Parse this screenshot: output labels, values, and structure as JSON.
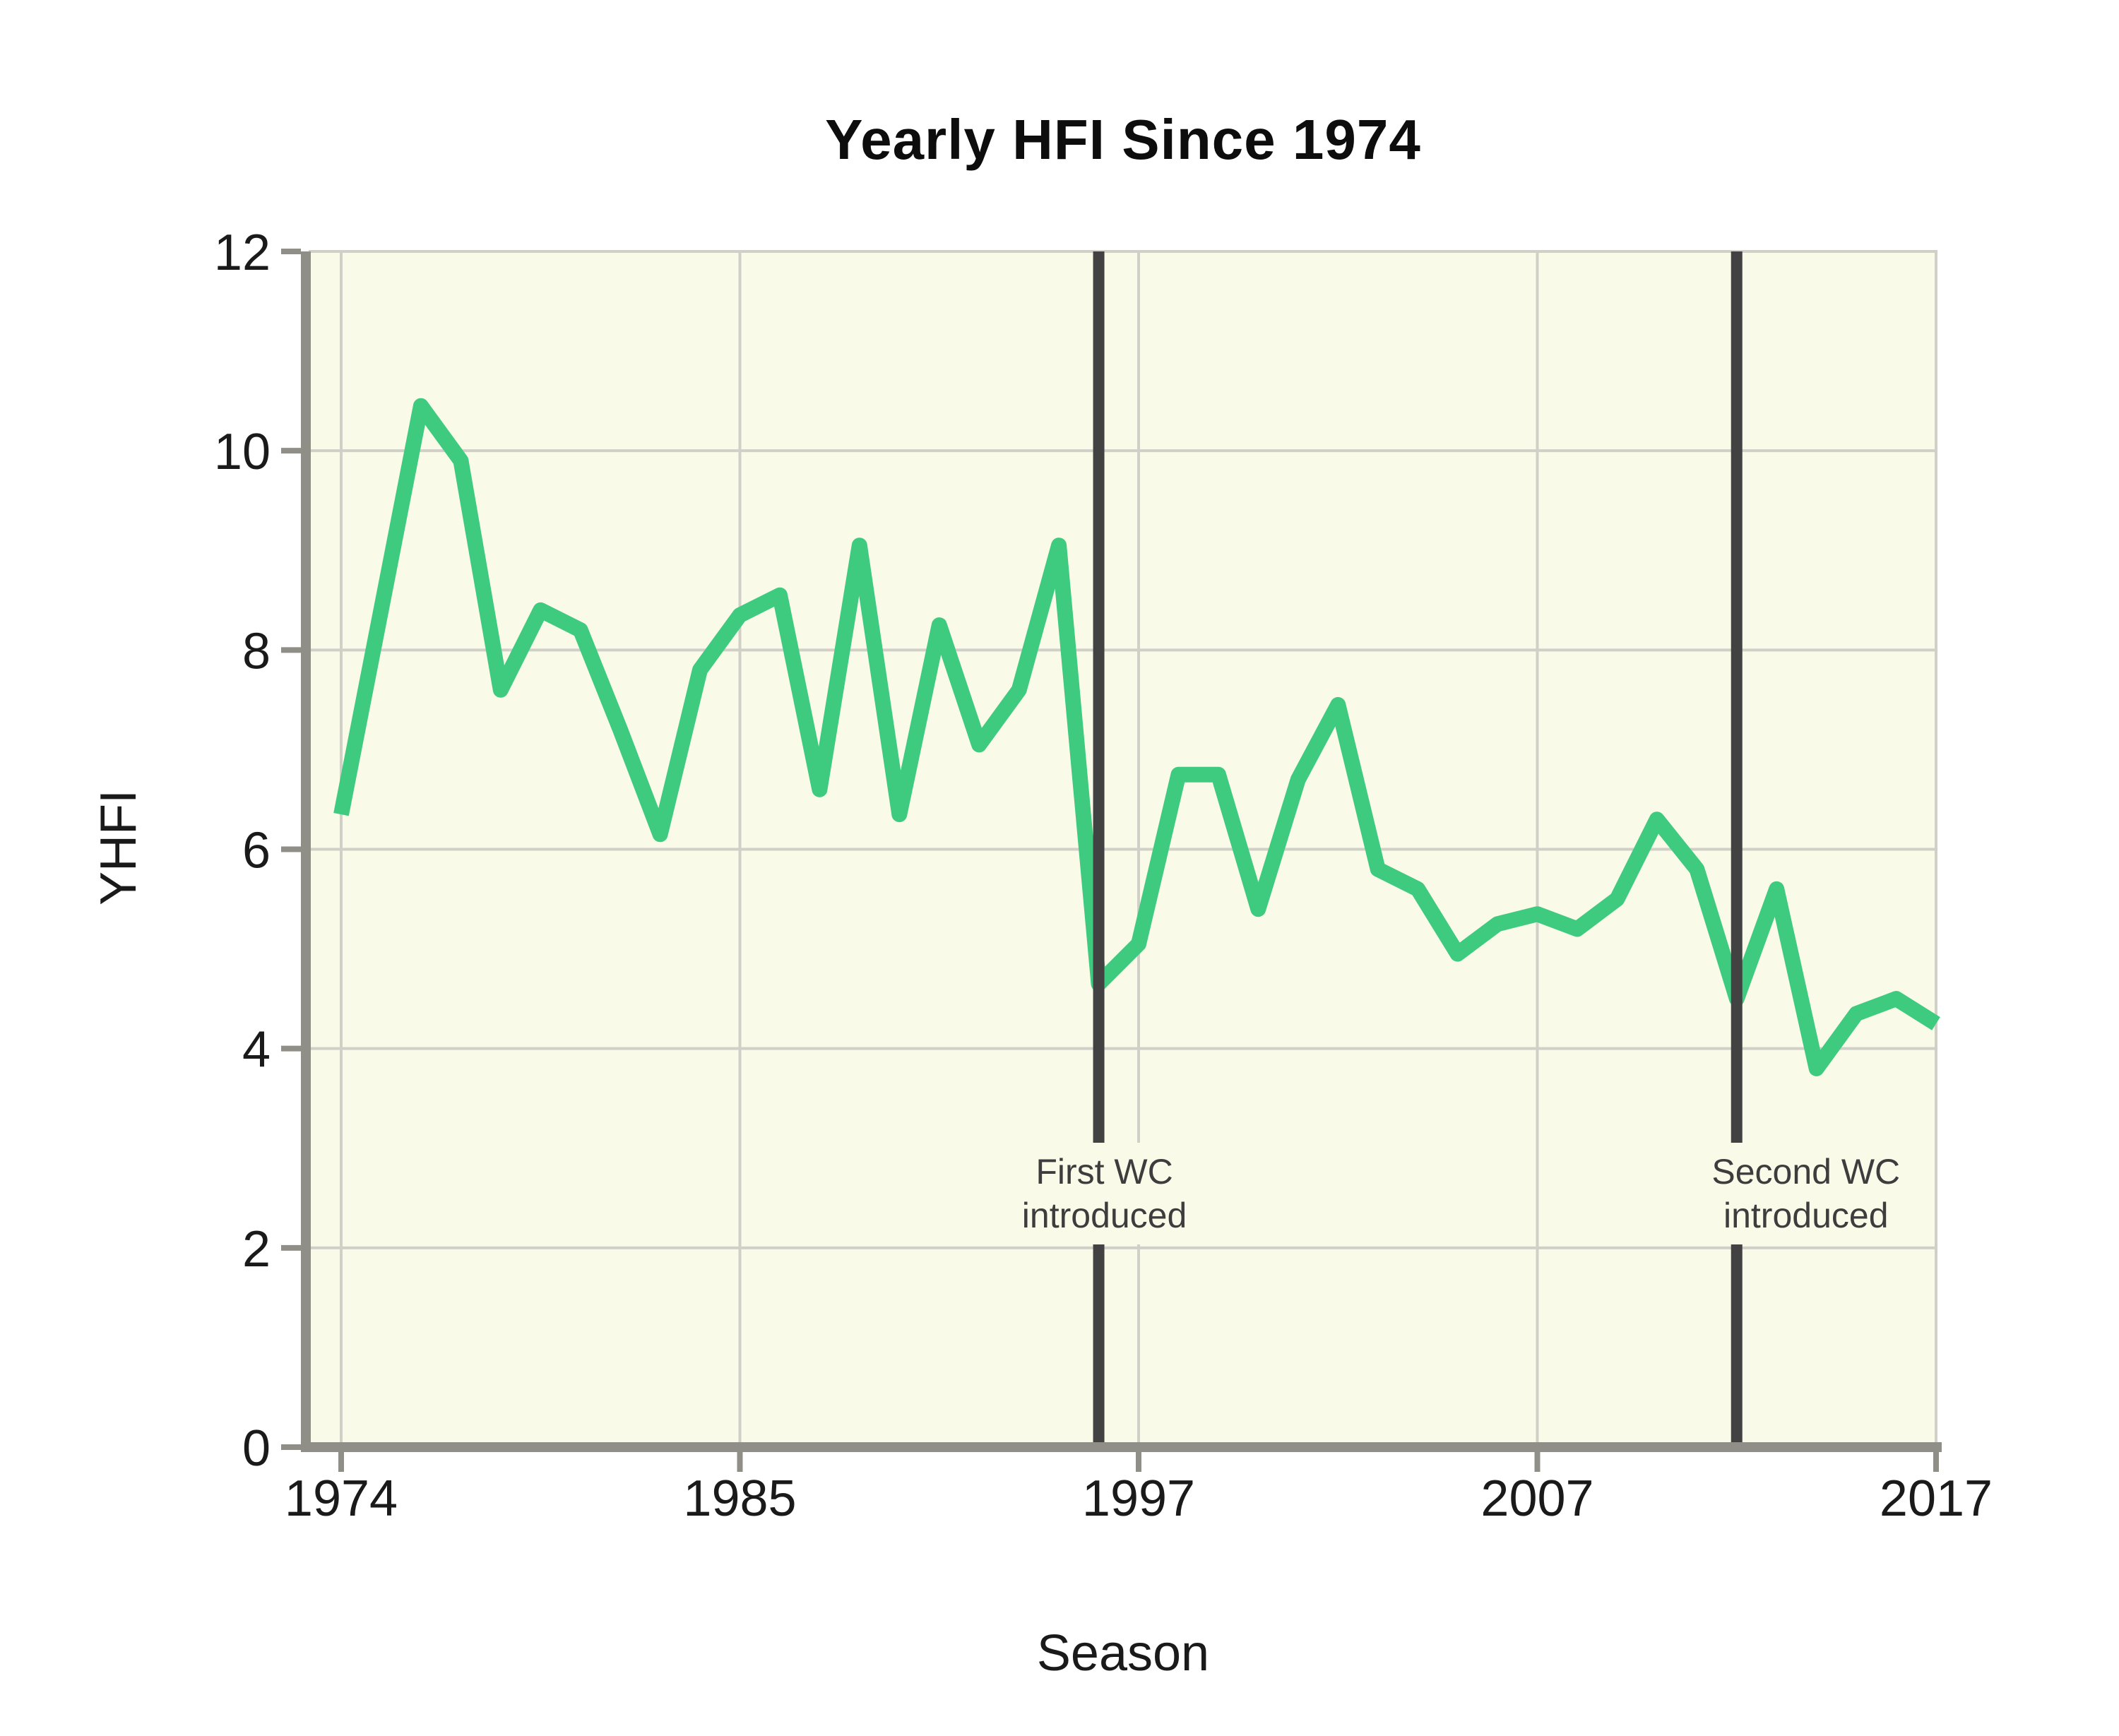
{
  "chart_data": {
    "type": "line",
    "title": "Yearly HFI Since 1974",
    "xlabel": "Season",
    "ylabel": "YHFI",
    "ylim": [
      0,
      12
    ],
    "yticks": [
      0,
      2,
      4,
      6,
      8,
      10,
      12
    ],
    "xtick_seasons": [
      1974,
      1985,
      1997,
      2007,
      2017
    ],
    "grid": true,
    "legend": false,
    "seasons": [
      1974,
      1975,
      1976,
      1977,
      1978,
      1979,
      1980,
      1982,
      1983,
      1984,
      1985,
      1986,
      1987,
      1988,
      1989,
      1990,
      1991,
      1992,
      1993,
      1996,
      1997,
      1998,
      1999,
      2000,
      2001,
      2002,
      2003,
      2004,
      2005,
      2006,
      2007,
      2008,
      2009,
      2010,
      2011,
      2012,
      2013,
      2014,
      2015,
      2016,
      2017
    ],
    "values": [
      6.35,
      8.4,
      10.45,
      9.9,
      7.6,
      8.4,
      8.2,
      7.2,
      6.15,
      7.8,
      8.35,
      8.55,
      6.6,
      9.05,
      6.35,
      8.25,
      7.05,
      7.6,
      9.05,
      4.65,
      5.05,
      6.75,
      6.75,
      5.4,
      6.7,
      7.45,
      5.8,
      5.6,
      4.95,
      5.25,
      5.35,
      5.2,
      5.5,
      6.3,
      5.8,
      4.5,
      5.6,
      3.8,
      4.35,
      4.5,
      4.25
    ],
    "annotations": [
      {
        "line1": "First WC",
        "line2": "introduced",
        "season": 1996,
        "text_dx": 8
      },
      {
        "line1": "Second WC",
        "line2": "introduced",
        "season": 2012,
        "text_dx": 98
      }
    ],
    "colors": {
      "line": "#3ecb7f",
      "rule": "#424242",
      "plot_bg": "#fafae8",
      "grid": "#d0d0c8",
      "axis": "#8f8f87",
      "tick_text": "#1a1a1a",
      "annotation_text": "#3d3d3d",
      "title_text": "#0d0d0d"
    }
  }
}
